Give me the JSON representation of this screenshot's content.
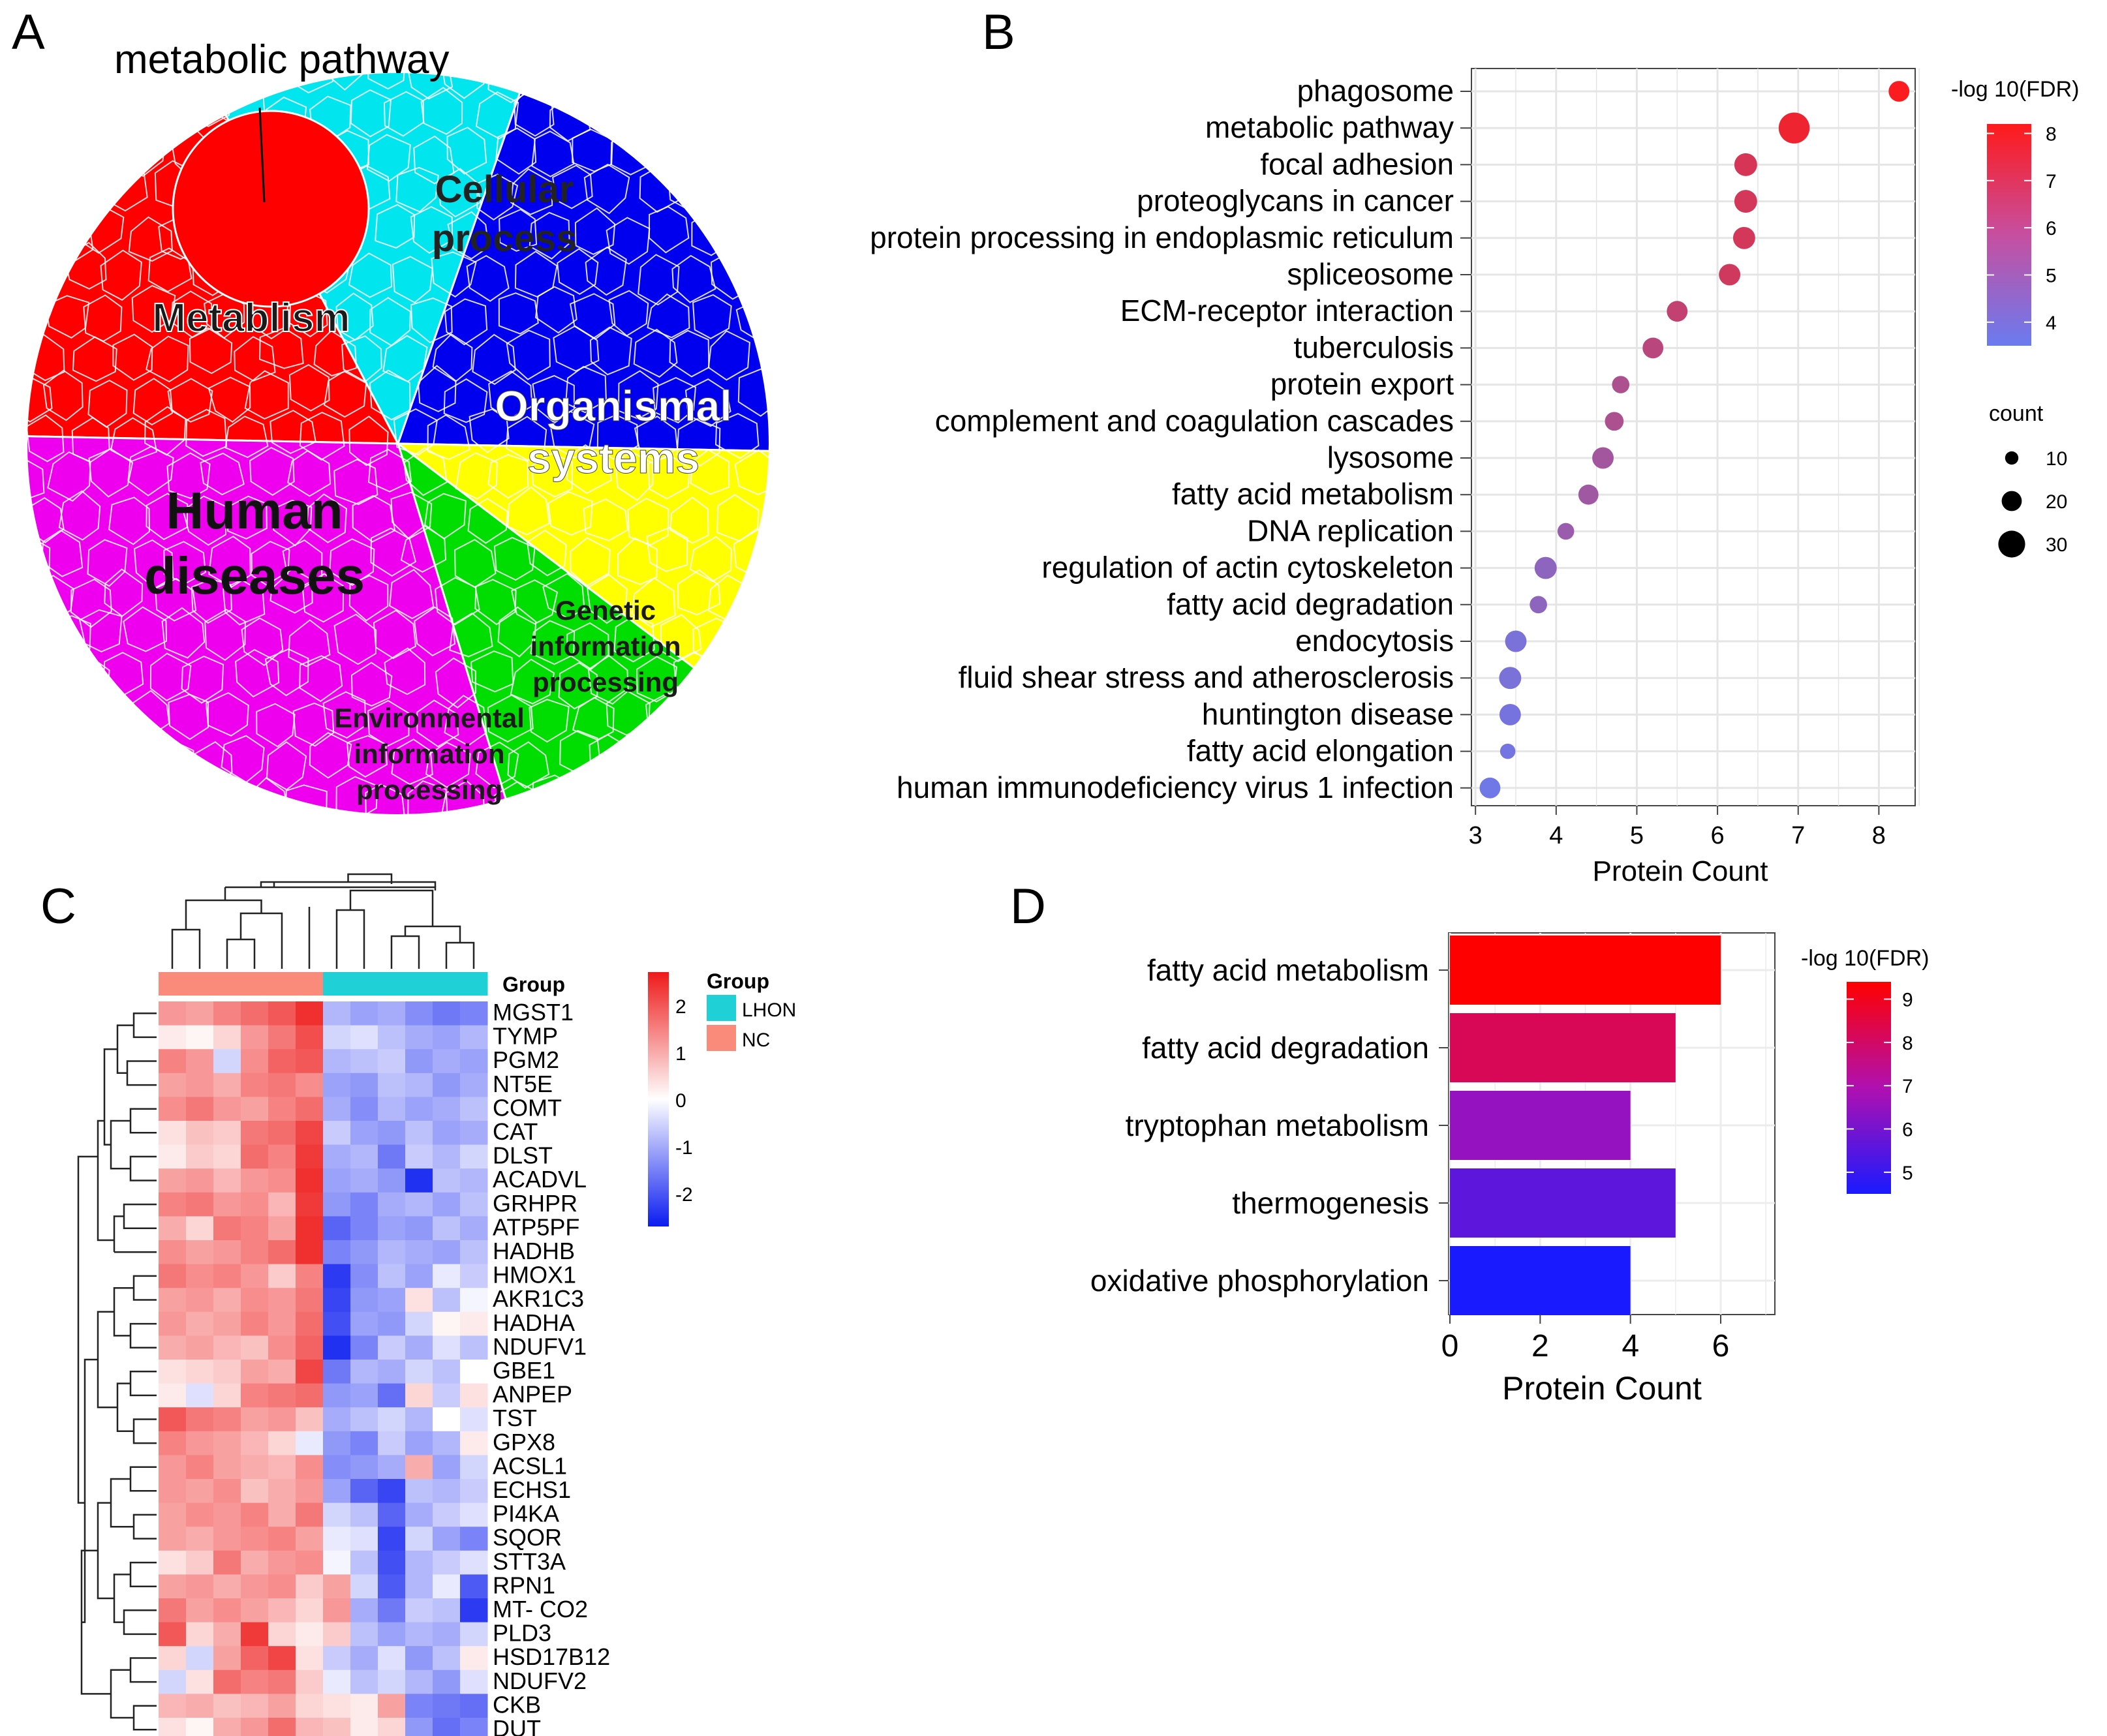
{
  "panels": {
    "a": "A",
    "b": "B",
    "c": "C",
    "d": "D"
  },
  "colors": {
    "metabolism": "#ff0000",
    "cellular": "#00e5ee",
    "organismal": "#0000ee",
    "genetic": "#ffff00",
    "environmental": "#00dd00",
    "human": "#ee00ee",
    "dot_low": "#6a7bf0",
    "dot_high": "#ff1a1a",
    "bar_low": "#1a1aff",
    "bar_high": "#ff0000",
    "heat_low": "#0b1cf0",
    "heat_mid": "#ffffff",
    "heat_high": "#ee1a1a",
    "group_lhon": "#1fd0d7",
    "group_nc": "#fa8a7a"
  },
  "chart_data": [
    {
      "type": "pie",
      "id": "A",
      "callout": "metabolic pathway",
      "sectors": [
        {
          "name": "Metablism",
          "value": 17,
          "color": "#ff0000"
        },
        {
          "name": "Cellular process",
          "value": 13,
          "color": "#00e5ee"
        },
        {
          "name": "Organismal systems",
          "value": 20,
          "color": "#0000ee"
        },
        {
          "name": "Genetic information processing",
          "value": 10,
          "color": "#ffff00"
        },
        {
          "name": "Environmental information processing",
          "value": 10,
          "color": "#00dd00"
        },
        {
          "name": "Human diseases",
          "value": 30,
          "color": "#ee00ee"
        }
      ]
    },
    {
      "type": "scatter",
      "id": "B",
      "xlabel": "Protein Count",
      "xlim": [
        2.95,
        8.45
      ],
      "xticks": [
        3,
        4,
        5,
        6,
        7,
        8
      ],
      "color_legend": {
        "title": "-log 10(FDR)",
        "range": [
          3.5,
          8.2
        ],
        "ticks": [
          4,
          5,
          6,
          7,
          8
        ]
      },
      "size_legend": {
        "title": "count",
        "values": [
          10,
          20,
          30
        ]
      },
      "points": [
        {
          "term": "phagosome",
          "x": 8.25,
          "fdr": 8.1,
          "count": 21
        },
        {
          "term": "metabolic pathway",
          "x": 6.95,
          "fdr": 7.7,
          "count": 36
        },
        {
          "term": "focal adhesion",
          "x": 6.35,
          "fdr": 6.9,
          "count": 24
        },
        {
          "term": "proteoglycans in cancer",
          "x": 6.35,
          "fdr": 6.8,
          "count": 24
        },
        {
          "term": "protein processing in endoplasmic reticulum",
          "x": 6.33,
          "fdr": 6.8,
          "count": 23
        },
        {
          "term": "spliceosome",
          "x": 6.15,
          "fdr": 6.7,
          "count": 22
        },
        {
          "term": "ECM-receptor interaction",
          "x": 5.5,
          "fdr": 6.3,
          "count": 21
        },
        {
          "term": "tuberculosis",
          "x": 5.2,
          "fdr": 6.0,
          "count": 21
        },
        {
          "term": "protein export",
          "x": 4.8,
          "fdr": 5.6,
          "count": 16
        },
        {
          "term": "complement and coagulation cascades",
          "x": 4.72,
          "fdr": 5.6,
          "count": 18
        },
        {
          "term": "lysosome",
          "x": 4.58,
          "fdr": 5.3,
          "count": 22
        },
        {
          "term": "fatty acid metabolism",
          "x": 4.4,
          "fdr": 5.2,
          "count": 20
        },
        {
          "term": "DNA replication",
          "x": 4.12,
          "fdr": 5.0,
          "count": 15
        },
        {
          "term": "regulation of actin cytoskeleton",
          "x": 3.87,
          "fdr": 4.6,
          "count": 23
        },
        {
          "term": "fatty acid degradation",
          "x": 3.78,
          "fdr": 4.6,
          "count": 16
        },
        {
          "term": "endocytosis",
          "x": 3.5,
          "fdr": 4.0,
          "count": 22
        },
        {
          "term": "fluid shear stress and atherosclerosis",
          "x": 3.43,
          "fdr": 4.0,
          "count": 23
        },
        {
          "term": "huntington disease",
          "x": 3.43,
          "fdr": 3.9,
          "count": 22
        },
        {
          "term": "fatty acid elongation",
          "x": 3.4,
          "fdr": 3.8,
          "count": 13
        },
        {
          "term": "human immunodeficiency virus 1 infection",
          "x": 3.18,
          "fdr": 3.7,
          "count": 21
        }
      ]
    },
    {
      "type": "heatmap",
      "id": "C",
      "legend_title": "Group",
      "legend_ticks": [
        2,
        1,
        0,
        -1,
        -2
      ],
      "group_label": "Group",
      "groups": [
        {
          "name": "LHON",
          "color": "#1fd0d7"
        },
        {
          "name": "NC",
          "color": "#fa8a7a"
        }
      ],
      "column_groups": [
        "NC",
        "NC",
        "NC",
        "NC",
        "NC",
        "NC",
        "LHON",
        "LHON",
        "LHON",
        "LHON",
        "LHON",
        "LHON"
      ],
      "rows": [
        {
          "gene": "MGST1",
          "values": [
            1.0,
            0.9,
            1.2,
            1.4,
            1.6,
            2.0,
            -0.7,
            -0.9,
            -0.8,
            -1.1,
            -1.3,
            -1.2
          ]
        },
        {
          "gene": "TYMP",
          "values": [
            0.2,
            0.1,
            0.4,
            1.0,
            1.3,
            1.7,
            -0.4,
            -0.3,
            -0.6,
            -0.8,
            -0.9,
            -0.7
          ]
        },
        {
          "gene": "PGM2",
          "values": [
            1.2,
            1.0,
            -0.4,
            1.1,
            1.5,
            1.6,
            -0.7,
            -0.6,
            -0.5,
            -1.0,
            -0.8,
            -0.9
          ]
        },
        {
          "gene": "NT5E",
          "values": [
            0.9,
            1.0,
            0.8,
            1.2,
            1.3,
            1.1,
            -0.9,
            -1.0,
            -0.6,
            -0.7,
            -1.0,
            -0.8
          ]
        },
        {
          "gene": "COMT",
          "values": [
            1.1,
            1.3,
            1.0,
            0.9,
            1.2,
            1.4,
            -0.8,
            -1.1,
            -0.7,
            -0.9,
            -0.8,
            -0.6
          ]
        },
        {
          "gene": "CAT",
          "values": [
            0.3,
            0.6,
            0.5,
            1.3,
            1.4,
            1.8,
            -0.5,
            -0.9,
            -1.0,
            -0.6,
            -0.9,
            -0.8
          ]
        },
        {
          "gene": "DLST",
          "values": [
            0.2,
            0.5,
            0.4,
            1.4,
            1.2,
            1.9,
            -0.8,
            -0.7,
            -1.3,
            -0.5,
            -0.7,
            -0.4
          ]
        },
        {
          "gene": "ACADVL",
          "values": [
            0.9,
            1.0,
            0.7,
            1.0,
            1.1,
            2.0,
            -0.9,
            -0.8,
            -1.0,
            -2.0,
            -0.6,
            -0.7
          ]
        },
        {
          "gene": "GRHPR",
          "values": [
            1.2,
            1.3,
            1.0,
            1.1,
            0.7,
            1.9,
            -1.0,
            -1.2,
            -0.8,
            -0.7,
            -0.9,
            -0.6
          ]
        },
        {
          "gene": "ATP5PF",
          "values": [
            0.8,
            0.4,
            1.3,
            1.2,
            0.9,
            2.0,
            -1.5,
            -1.2,
            -0.9,
            -1.0,
            -0.6,
            -0.8
          ]
        },
        {
          "gene": "HADHB",
          "values": [
            1.1,
            0.9,
            1.0,
            1.2,
            1.4,
            2.0,
            -1.2,
            -1.0,
            -0.7,
            -0.8,
            -0.9,
            -0.6
          ]
        },
        {
          "gene": "HMOX1",
          "values": [
            1.3,
            1.1,
            1.2,
            1.0,
            0.5,
            1.2,
            -1.9,
            -1.1,
            -0.6,
            -0.9,
            -0.2,
            -0.5
          ]
        },
        {
          "gene": "AKR1C3",
          "values": [
            0.9,
            1.0,
            0.8,
            1.1,
            1.0,
            1.3,
            -1.8,
            -1.0,
            -0.9,
            0.3,
            -0.6,
            -0.1
          ]
        },
        {
          "gene": "HADHA",
          "values": [
            1.0,
            0.8,
            0.9,
            1.2,
            1.0,
            1.4,
            -1.7,
            -0.9,
            -1.0,
            -0.4,
            0.1,
            0.2
          ]
        },
        {
          "gene": "NDUFV1",
          "values": [
            0.8,
            0.9,
            0.7,
            0.6,
            1.1,
            1.5,
            -2.0,
            -1.2,
            -0.5,
            -0.8,
            -0.3,
            -0.6
          ]
        },
        {
          "gene": "GBE1",
          "values": [
            0.3,
            0.4,
            0.5,
            0.9,
            0.8,
            1.8,
            -1.3,
            -0.7,
            -0.8,
            -0.4,
            -0.6,
            0.0
          ]
        },
        {
          "gene": "ANPEP",
          "values": [
            0.2,
            -0.3,
            0.4,
            1.2,
            1.3,
            1.4,
            -1.0,
            -0.9,
            -1.4,
            0.4,
            -0.5,
            0.3
          ]
        },
        {
          "gene": "TST",
          "values": [
            1.6,
            1.3,
            1.2,
            0.9,
            1.0,
            0.6,
            -0.8,
            -0.6,
            -0.4,
            -0.7,
            0.0,
            -0.3
          ]
        },
        {
          "gene": "GPX8",
          "values": [
            1.2,
            1.0,
            0.9,
            0.7,
            0.4,
            -0.2,
            -1.0,
            -1.2,
            -0.5,
            -0.9,
            -0.7,
            0.2
          ]
        },
        {
          "gene": "ACSL1",
          "values": [
            1.0,
            1.2,
            0.9,
            0.8,
            0.7,
            1.1,
            -1.1,
            -1.0,
            -0.8,
            0.8,
            -0.9,
            -0.4
          ]
        },
        {
          "gene": "ECHS1",
          "values": [
            1.0,
            0.9,
            1.1,
            0.6,
            0.8,
            1.0,
            -0.9,
            -1.5,
            -1.8,
            -0.6,
            -0.7,
            -0.5
          ]
        },
        {
          "gene": "PI4KA",
          "values": [
            0.9,
            1.1,
            1.0,
            1.2,
            0.8,
            1.3,
            -0.4,
            -0.6,
            -1.5,
            -0.8,
            -0.5,
            -0.3
          ]
        },
        {
          "gene": "SQOR",
          "values": [
            0.9,
            0.8,
            1.0,
            1.1,
            1.2,
            0.9,
            -0.2,
            -0.3,
            -1.8,
            -0.4,
            -0.9,
            -1.2
          ]
        },
        {
          "gene": "STT3A",
          "values": [
            0.3,
            0.5,
            1.3,
            0.8,
            1.0,
            1.1,
            -0.1,
            -0.6,
            -1.7,
            -0.7,
            -0.5,
            -0.3
          ]
        },
        {
          "gene": "RPN1",
          "values": [
            0.9,
            1.0,
            0.8,
            1.0,
            1.1,
            0.5,
            0.9,
            -0.4,
            -1.6,
            -0.7,
            -0.2,
            -1.6
          ]
        },
        {
          "gene": "MT- CO2",
          "values": [
            1.3,
            0.9,
            1.1,
            0.9,
            0.7,
            0.4,
            1.0,
            -0.8,
            -1.3,
            -0.5,
            -0.6,
            -1.9
          ]
        },
        {
          "gene": "PLD3",
          "values": [
            1.6,
            0.4,
            0.8,
            1.9,
            0.4,
            0.2,
            0.5,
            -0.6,
            -0.9,
            -0.7,
            -0.8,
            -0.4
          ]
        },
        {
          "gene": "HSD17B12",
          "values": [
            0.4,
            -0.4,
            0.9,
            1.5,
            1.8,
            0.3,
            -0.5,
            -0.8,
            -0.3,
            -1.0,
            -0.6,
            0.2
          ]
        },
        {
          "gene": "NDUFV2",
          "values": [
            -0.4,
            0.3,
            1.4,
            1.2,
            1.3,
            0.5,
            -0.2,
            -0.6,
            -0.4,
            -0.7,
            -1.0,
            -0.3
          ]
        },
        {
          "gene": "CKB",
          "values": [
            0.7,
            0.8,
            0.6,
            0.7,
            0.9,
            0.4,
            0.3,
            0.2,
            0.9,
            -1.2,
            -1.3,
            -1.4
          ]
        },
        {
          "gene": "DUT",
          "values": [
            0.3,
            0.1,
            0.8,
            1.0,
            1.4,
            0.7,
            0.6,
            0.2,
            0.4,
            -1.0,
            -1.4,
            -1.2
          ]
        }
      ]
    },
    {
      "type": "bar",
      "id": "D",
      "orientation": "horizontal",
      "xlabel": "Protein Count",
      "xlim": [
        0,
        7.2
      ],
      "xticks": [
        0,
        2,
        4,
        6
      ],
      "color_legend": {
        "title": "-log 10(FDR)",
        "range": [
          4.5,
          9.4
        ],
        "ticks": [
          5,
          6,
          7,
          8,
          9
        ]
      },
      "categories": [
        "fatty acid metabolism",
        "fatty acid degradation",
        "tryptophan metabolism",
        "thermogenesis",
        "oxidative phosphorylation"
      ],
      "values": [
        6,
        5,
        4,
        5,
        4
      ],
      "fdr": [
        9.4,
        8.2,
        6.5,
        5.6,
        4.5
      ]
    }
  ]
}
